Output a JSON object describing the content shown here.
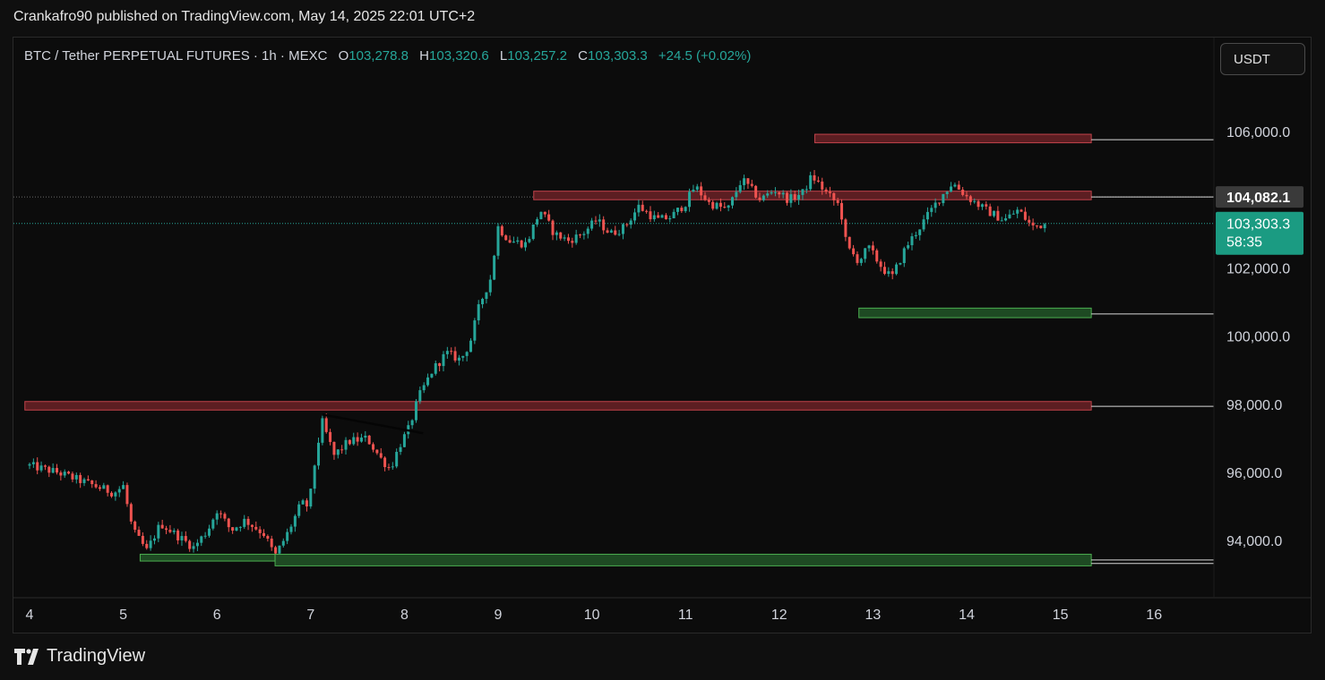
{
  "header": {
    "text": "Crankafro90 published on TradingView.com, May 14, 2025 22:01 UTC+2"
  },
  "legend": {
    "symbol": "BTC / Tether PERPETUAL FUTURES · 1h · MEXC",
    "o_label": "O",
    "o_value": "103,278.8",
    "h_label": "H",
    "h_value": "103,320.6",
    "l_label": "L",
    "l_value": "103,257.2",
    "c_label": "C",
    "c_value": "103,303.3",
    "change": "+24.5 (+0.02%)"
  },
  "currency_button": {
    "label": "USDT"
  },
  "footer": {
    "logo_text": "TradingView"
  },
  "colors": {
    "up": "#26a69a",
    "down": "#ef5350",
    "resistance_fill": "#5c1e22",
    "resistance_edge": "#c2434b",
    "support_fill": "#1e4a23",
    "support_edge": "#4caf50",
    "price_badge": "#1b9b82",
    "level_badge": "#3a3a3a"
  },
  "chart_data": {
    "type": "candlestick",
    "symbol": "BTC / Tether PERPETUAL FUTURES",
    "interval": "1h",
    "exchange": "MEXC",
    "currency": "USDT",
    "x_ticks": [
      "4",
      "5",
      "6",
      "7",
      "8",
      "9",
      "10",
      "11",
      "12",
      "13",
      "14",
      "15",
      "16"
    ],
    "y_ticks": [
      "94,000.0",
      "96,000.0",
      "98,000.0",
      "100,000.0",
      "102,000.0",
      "106,000.0"
    ],
    "ylim": [
      92800,
      107600
    ],
    "last_price": {
      "label": "103,303.3",
      "countdown": "58:35",
      "value": 103303.3
    },
    "marked_level": {
      "label": "104,082.1",
      "value": 104082.1
    },
    "close_path": [
      [
        4.0,
        96200
      ],
      [
        4.3,
        96000
      ],
      [
        4.6,
        95700
      ],
      [
        4.9,
        95400
      ],
      [
        5.0,
        95600
      ],
      [
        5.1,
        94300
      ],
      [
        5.25,
        93700
      ],
      [
        5.4,
        94500
      ],
      [
        5.6,
        94100
      ],
      [
        5.75,
        93800
      ],
      [
        5.9,
        94300
      ],
      [
        6.0,
        94900
      ],
      [
        6.15,
        94300
      ],
      [
        6.3,
        94600
      ],
      [
        6.5,
        94200
      ],
      [
        6.62,
        93550
      ],
      [
        6.75,
        94200
      ],
      [
        6.9,
        95100
      ],
      [
        6.98,
        95000
      ],
      [
        7.05,
        96400
      ],
      [
        7.12,
        97500
      ],
      [
        7.25,
        96500
      ],
      [
        7.4,
        96900
      ],
      [
        7.6,
        97000
      ],
      [
        7.75,
        96400
      ],
      [
        7.85,
        96100
      ],
      [
        7.95,
        96800
      ],
      [
        8.05,
        97300
      ],
      [
        8.15,
        98200
      ],
      [
        8.3,
        99000
      ],
      [
        8.45,
        99500
      ],
      [
        8.6,
        99300
      ],
      [
        8.7,
        99800
      ],
      [
        8.8,
        100900
      ],
      [
        8.92,
        101700
      ],
      [
        9.0,
        103200
      ],
      [
        9.12,
        102800
      ],
      [
        9.3,
        102700
      ],
      [
        9.45,
        103700
      ],
      [
        9.6,
        103000
      ],
      [
        9.75,
        102800
      ],
      [
        9.9,
        103000
      ],
      [
        10.05,
        103400
      ],
      [
        10.2,
        103000
      ],
      [
        10.35,
        103200
      ],
      [
        10.5,
        103800
      ],
      [
        10.7,
        103400
      ],
      [
        10.85,
        103500
      ],
      [
        11.0,
        103900
      ],
      [
        11.1,
        104400
      ],
      [
        11.25,
        103900
      ],
      [
        11.45,
        103700
      ],
      [
        11.6,
        104600
      ],
      [
        11.8,
        104000
      ],
      [
        11.95,
        104300
      ],
      [
        12.1,
        104000
      ],
      [
        12.25,
        104200
      ],
      [
        12.35,
        104700
      ],
      [
        12.5,
        104200
      ],
      [
        12.65,
        103800
      ],
      [
        12.72,
        102600
      ],
      [
        12.85,
        102200
      ],
      [
        12.95,
        102600
      ],
      [
        13.1,
        102000
      ],
      [
        13.2,
        101700
      ],
      [
        13.35,
        102600
      ],
      [
        13.55,
        103400
      ],
      [
        13.7,
        104000
      ],
      [
        13.85,
        104500
      ],
      [
        14.0,
        104100
      ],
      [
        14.2,
        103700
      ],
      [
        14.4,
        103400
      ],
      [
        14.55,
        103700
      ],
      [
        14.7,
        103200
      ],
      [
        14.85,
        103303
      ]
    ],
    "trendline": {
      "from": [
        7.12,
        97700
      ],
      "to": [
        8.2,
        97150
      ]
    },
    "zones": [
      {
        "kind": "resistance",
        "x_start": 12.38,
        "x_end": 15.33,
        "y_low": 105670,
        "y_high": 105920,
        "ray_y": 105760
      },
      {
        "kind": "resistance",
        "x_start": 9.38,
        "x_end": 15.33,
        "y_low": 104000,
        "y_high": 104250,
        "ray_y": 104082
      },
      {
        "kind": "resistance",
        "x_start": 3.95,
        "x_end": 15.33,
        "y_low": 97830,
        "y_high": 98080,
        "ray_y": 97940
      },
      {
        "kind": "support",
        "x_start": 12.85,
        "x_end": 15.33,
        "y_low": 100540,
        "y_high": 100820,
        "ray_y": 100650
      },
      {
        "kind": "support",
        "x_start": 5.18,
        "x_end": 6.62,
        "y_low": 93400,
        "y_high": 93600,
        "ray_y": null
      },
      {
        "kind": "support",
        "x_start": 6.62,
        "x_end": 15.33,
        "y_low": 93260,
        "y_high": 93600,
        "ray_y": 93430
      }
    ]
  }
}
